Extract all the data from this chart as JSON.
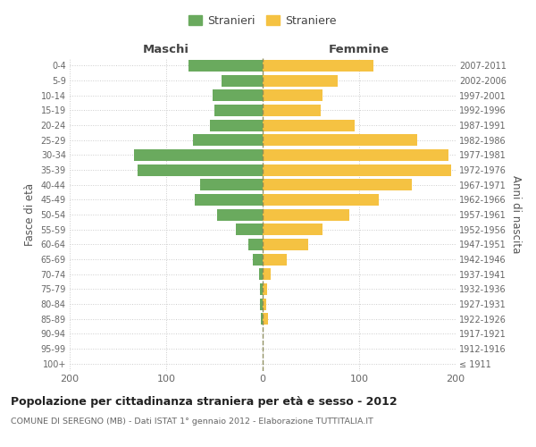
{
  "age_groups": [
    "100+",
    "95-99",
    "90-94",
    "85-89",
    "80-84",
    "75-79",
    "70-74",
    "65-69",
    "60-64",
    "55-59",
    "50-54",
    "45-49",
    "40-44",
    "35-39",
    "30-34",
    "25-29",
    "20-24",
    "15-19",
    "10-14",
    "5-9",
    "0-4"
  ],
  "birth_years": [
    "≤ 1911",
    "1912-1916",
    "1917-1921",
    "1922-1926",
    "1927-1931",
    "1932-1936",
    "1937-1941",
    "1942-1946",
    "1947-1951",
    "1952-1956",
    "1957-1961",
    "1962-1966",
    "1967-1971",
    "1972-1976",
    "1977-1981",
    "1982-1986",
    "1987-1991",
    "1992-1996",
    "1997-2001",
    "2002-2006",
    "2007-2011"
  ],
  "males": [
    0,
    0,
    0,
    2,
    3,
    3,
    4,
    10,
    15,
    28,
    47,
    70,
    65,
    130,
    133,
    72,
    55,
    50,
    52,
    43,
    77
  ],
  "females": [
    0,
    0,
    0,
    6,
    4,
    5,
    8,
    25,
    47,
    62,
    90,
    120,
    155,
    195,
    193,
    160,
    95,
    60,
    62,
    78,
    115
  ],
  "male_color": "#6aaa5e",
  "female_color": "#f5c242",
  "background_color": "#ffffff",
  "grid_color": "#cccccc",
  "center_line_color": "#888855",
  "title": "Popolazione per cittadinanza straniera per età e sesso - 2012",
  "subtitle": "COMUNE DI SEREGNO (MB) - Dati ISTAT 1° gennaio 2012 - Elaborazione TUTTITALIA.IT",
  "xlabel_left": "Maschi",
  "xlabel_right": "Femmine",
  "ylabel_left": "Fasce di età",
  "ylabel_right": "Anni di nascita",
  "legend_male": "Stranieri",
  "legend_female": "Straniere",
  "xlim": 200
}
